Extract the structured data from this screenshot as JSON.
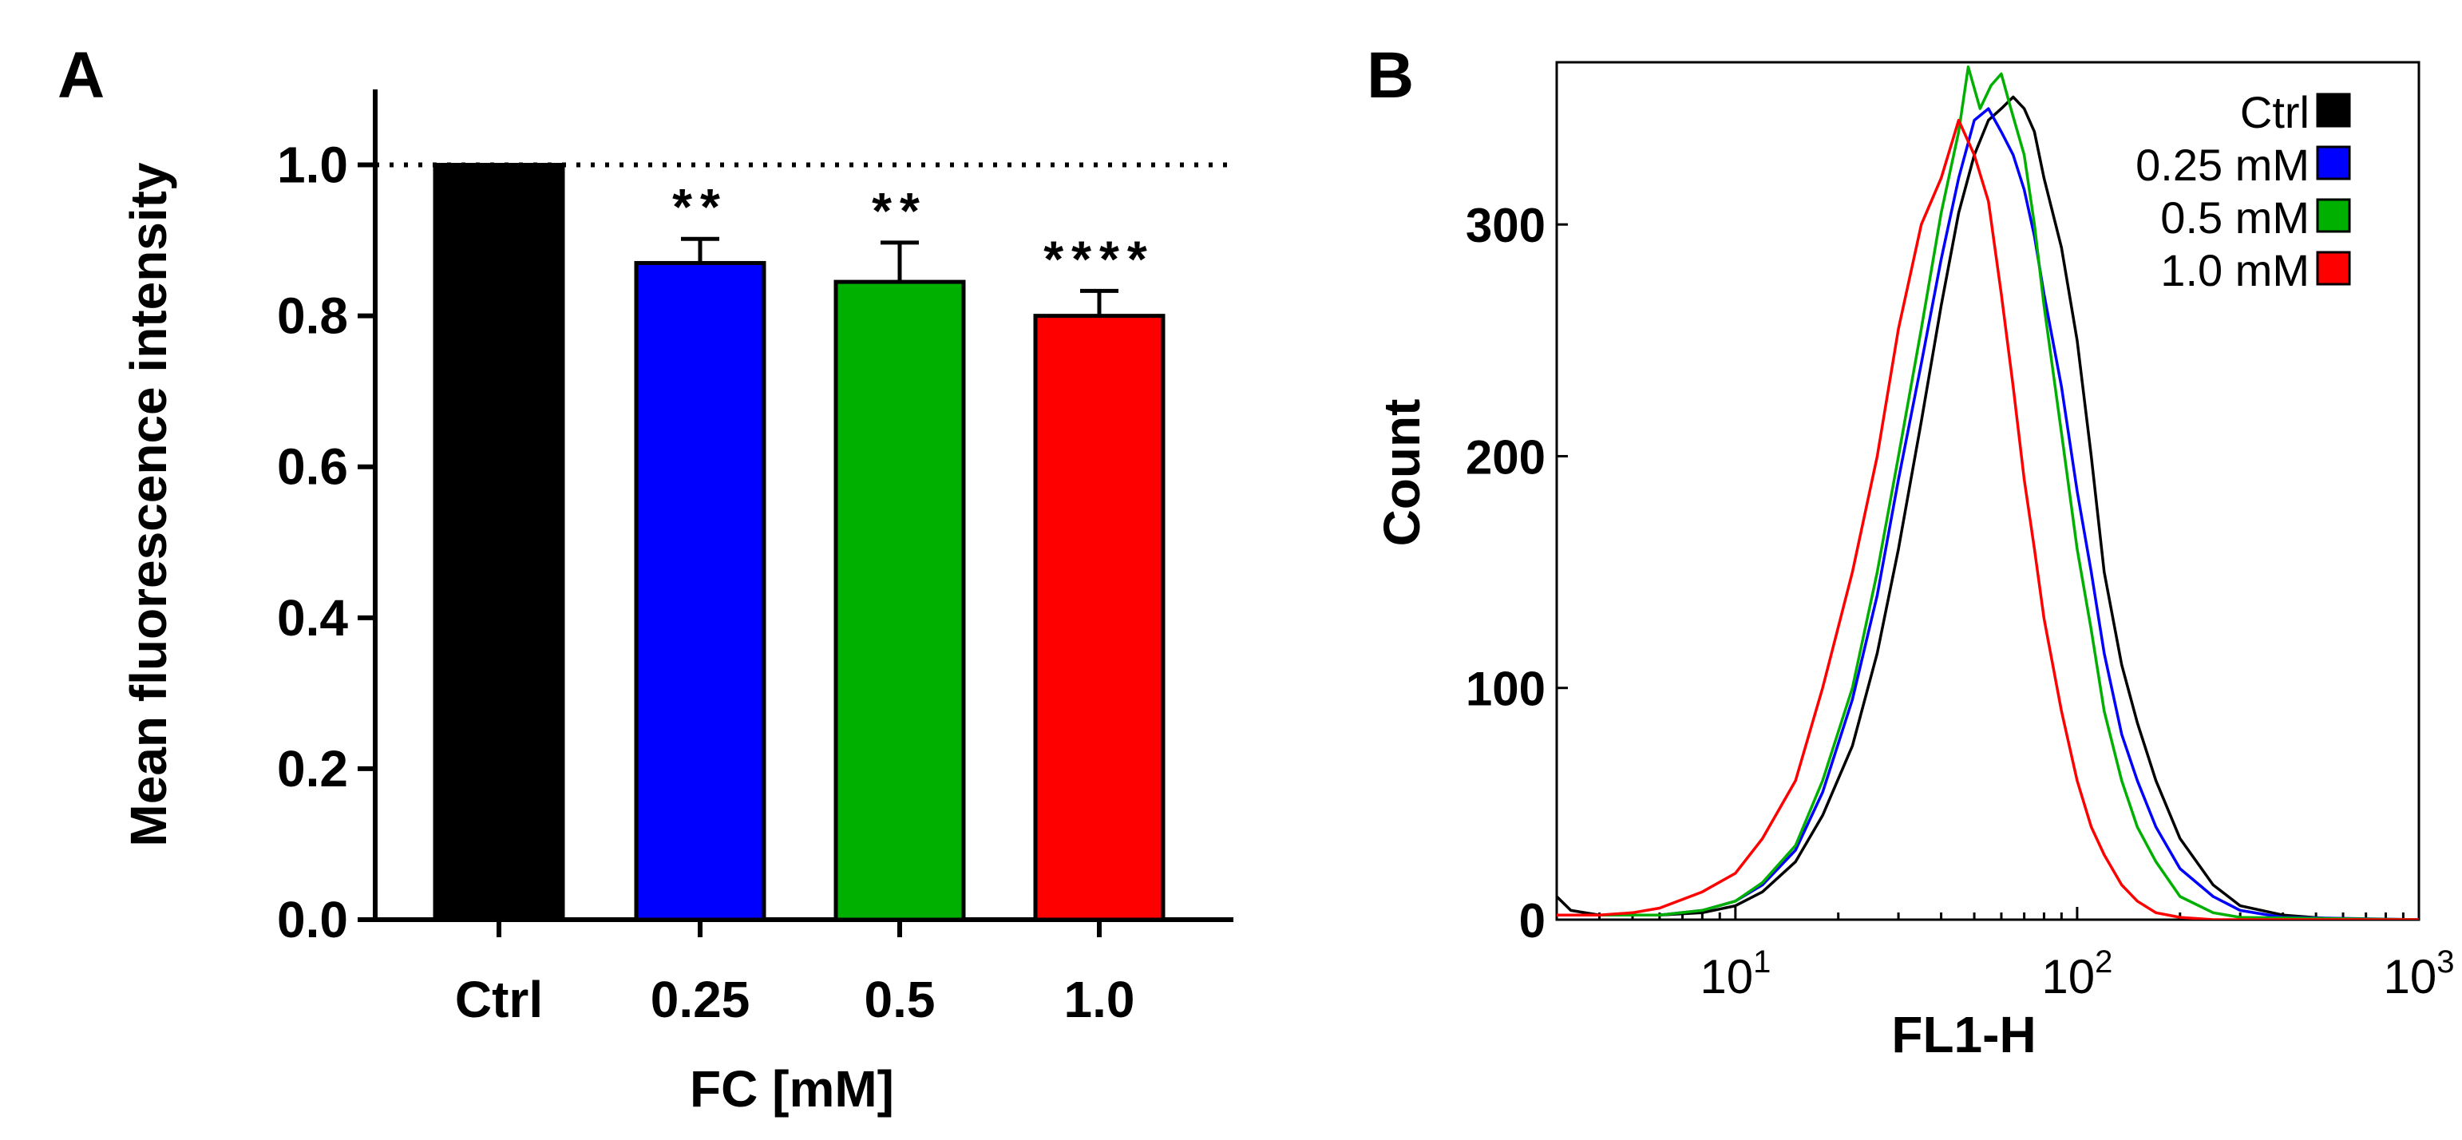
{
  "chart_data": [
    {
      "panel_label": "A",
      "type": "bar",
      "xlabel": "FC [mM]",
      "ylabel": "Mean fluorescence intensity",
      "ylim": [
        0,
        1.1
      ],
      "yticks": [
        "0.0",
        "0.2",
        "0.4",
        "0.6",
        "0.8",
        "1.0"
      ],
      "categories": [
        "Ctrl",
        "0.25",
        "0.5",
        "1.0"
      ],
      "values": [
        1.0,
        0.87,
        0.845,
        0.8
      ],
      "errors": [
        0.0,
        0.032,
        0.052,
        0.033
      ],
      "colors": [
        "#000000",
        "#0000ff",
        "#00b000",
        "#ff0000"
      ],
      "significance": [
        "",
        "**",
        "**",
        "****"
      ],
      "reference_line": 1.0
    },
    {
      "panel_label": "B",
      "type": "line",
      "xscale": "log",
      "xlim": [
        3,
        1000
      ],
      "ylim": [
        0,
        370
      ],
      "xlabel": "FL1-H",
      "ylabel": "Count",
      "xticks": [
        {
          "value": 10,
          "base": "10",
          "exp": "1"
        },
        {
          "value": 100,
          "base": "10",
          "exp": "2"
        },
        {
          "value": 1000,
          "base": "10",
          "exp": "3"
        }
      ],
      "yticks": [
        "0",
        "100",
        "200",
        "300"
      ],
      "legend_position": "top-right",
      "series": [
        {
          "name": "Ctrl",
          "color": "#000000",
          "x": [
            3,
            3.3,
            4,
            6,
            8,
            10,
            12,
            15,
            18,
            22,
            26,
            30,
            35,
            40,
            45,
            50,
            55,
            60,
            65,
            70,
            75,
            80,
            90,
            100,
            110,
            120,
            135,
            150,
            170,
            200,
            250,
            300,
            400,
            600,
            1000
          ],
          "y": [
            10,
            4,
            2,
            2,
            3,
            6,
            12,
            25,
            45,
            75,
            115,
            160,
            215,
            265,
            305,
            330,
            345,
            350,
            355,
            350,
            340,
            320,
            290,
            250,
            200,
            150,
            110,
            85,
            60,
            35,
            15,
            6,
            2,
            0,
            0
          ]
        },
        {
          "name": "0.25 mM",
          "color": "#0000ff",
          "x": [
            3,
            4,
            6,
            8,
            10,
            12,
            15,
            18,
            22,
            26,
            30,
            35,
            40,
            45,
            50,
            55,
            60,
            65,
            70,
            75,
            80,
            90,
            100,
            110,
            120,
            135,
            150,
            170,
            200,
            250,
            300,
            400,
            1000
          ],
          "y": [
            2,
            2,
            2,
            4,
            8,
            15,
            30,
            55,
            95,
            140,
            190,
            240,
            285,
            320,
            345,
            350,
            340,
            330,
            315,
            295,
            270,
            230,
            185,
            150,
            115,
            80,
            60,
            40,
            22,
            10,
            4,
            1,
            0
          ]
        },
        {
          "name": "0.5 mM",
          "color": "#00b000",
          "x": [
            3,
            4,
            6,
            8,
            10,
            12,
            15,
            18,
            22,
            26,
            30,
            35,
            40,
            45,
            48,
            52,
            56,
            60,
            64,
            70,
            75,
            80,
            90,
            100,
            110,
            120,
            135,
            150,
            170,
            200,
            250,
            300,
            1000
          ],
          "y": [
            2,
            2,
            2,
            4,
            8,
            16,
            32,
            60,
            100,
            150,
            200,
            255,
            305,
            340,
            368,
            350,
            360,
            365,
            350,
            330,
            300,
            265,
            210,
            160,
            125,
            90,
            60,
            40,
            25,
            10,
            3,
            1,
            0
          ]
        },
        {
          "name": "1.0 mM",
          "color": "#ff0000",
          "x": [
            3,
            4,
            5,
            6,
            8,
            10,
            12,
            15,
            18,
            22,
            26,
            30,
            35,
            40,
            45,
            50,
            55,
            60,
            65,
            70,
            75,
            80,
            90,
            100,
            110,
            120,
            135,
            150,
            170,
            200,
            250,
            1000
          ],
          "y": [
            2,
            2,
            3,
            5,
            12,
            20,
            35,
            60,
            100,
            150,
            200,
            255,
            300,
            320,
            345,
            330,
            310,
            270,
            230,
            190,
            160,
            130,
            90,
            60,
            40,
            28,
            15,
            8,
            3,
            1,
            0,
            0
          ]
        }
      ]
    }
  ]
}
